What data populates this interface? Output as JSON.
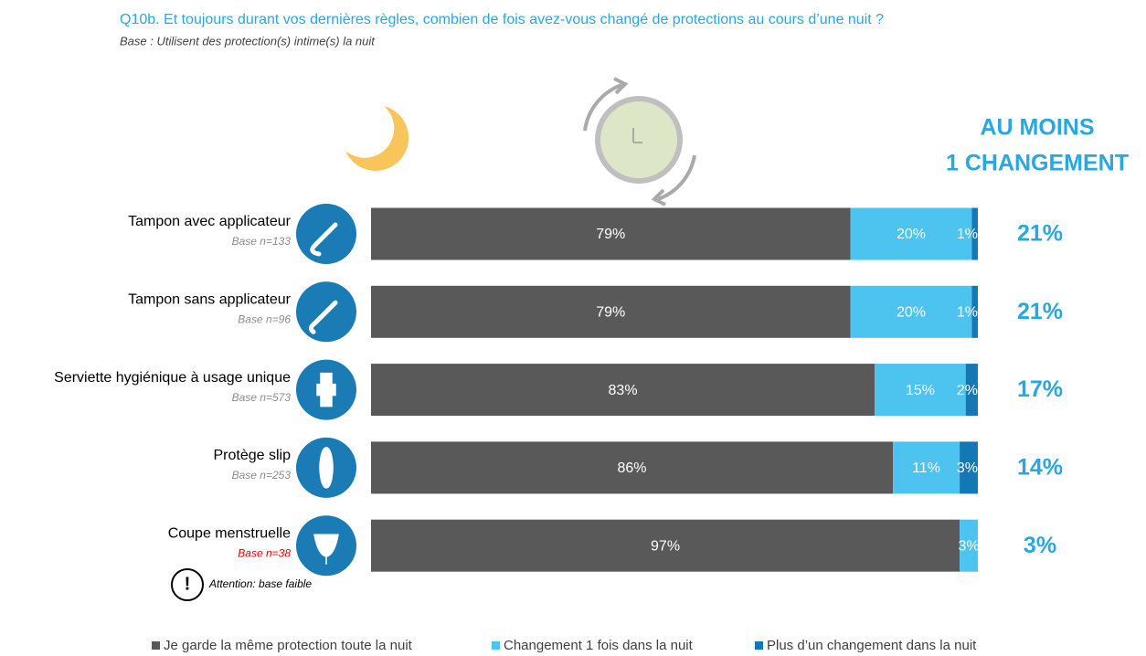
{
  "chart_data": {
    "type": "bar",
    "orientation": "horizontal",
    "stacked": true,
    "title": "Q10b. Et toujours durant vos dernières règles, combien de fois avez-vous changé de protections au cours d’une nuit ?",
    "subtitle": "Base : Utilisent des protection(s) intime(s) la nuit",
    "categories": [
      "Tampon avec applicateur",
      "Tampon sans applicateur",
      "Serviette hygiénique à usage unique",
      "Protège slip",
      "Coupe menstruelle"
    ],
    "bases": [
      "Base n=133",
      "Base n=96",
      "Base n=573",
      "Base n=253",
      "Base n=38"
    ],
    "base_colors": [
      "#8c8c8c",
      "#8c8c8c",
      "#8c8c8c",
      "#8c8c8c",
      "#e00000"
    ],
    "xlim": [
      0,
      100
    ],
    "series": [
      {
        "name": "Je garde la même protection toute la nuit",
        "color": "#595959",
        "values": [
          79,
          79,
          83,
          86,
          97
        ],
        "value_labels": [
          "79%",
          "79%",
          "83%",
          "86%",
          "97%"
        ]
      },
      {
        "name": "Changement 1 fois dans la nuit",
        "color": "#4dc3ef",
        "values": [
          20,
          20,
          15,
          11,
          3
        ],
        "value_labels": [
          "20%",
          "20%",
          "15%",
          "11%",
          "3%"
        ]
      },
      {
        "name": "Plus d’un changement dans la nuit",
        "color": "#1478b4",
        "values": [
          1,
          1,
          2,
          3,
          null
        ],
        "value_labels": [
          "1%",
          "1%",
          "2%",
          "3%",
          null
        ]
      }
    ],
    "totals": {
      "title": [
        "AU MOINS",
        "1 CHANGEMENT"
      ],
      "color": "#29a8e0",
      "values": [
        21,
        21,
        17,
        14,
        3
      ],
      "value_labels": [
        "21%",
        "21%",
        "17%",
        "14%",
        "3%"
      ]
    },
    "annotation": "Attention: base faible"
  }
}
